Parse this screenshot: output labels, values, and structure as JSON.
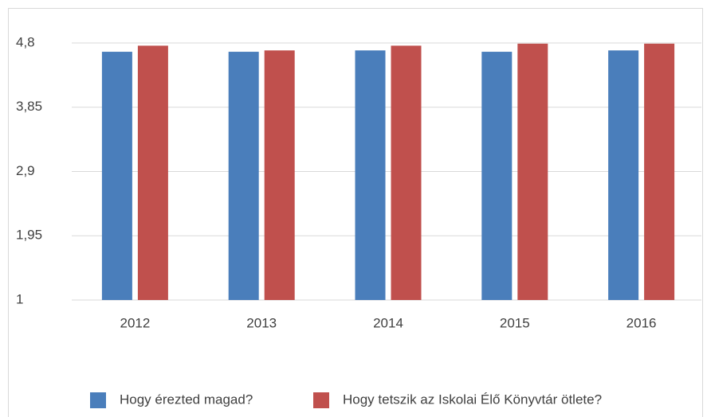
{
  "chart_data": {
    "type": "bar",
    "categories": [
      "2012",
      "2013",
      "2014",
      "2015",
      "2016"
    ],
    "series": [
      {
        "name": "Hogy érezted magad?",
        "color": "#4a7ebb",
        "values": [
          4.67,
          4.67,
          4.69,
          4.67,
          4.69
        ]
      },
      {
        "name": "Hogy tetszik az Iskolai Élő Könyvtár ötlete?",
        "color": "#c0504d",
        "values": [
          4.76,
          4.69,
          4.76,
          4.79,
          4.79
        ]
      }
    ],
    "ylim": [
      1,
      4.8
    ],
    "yticks": [
      1,
      {
        "value": 1.95,
        "label": "1,95"
      },
      {
        "value": 2.9,
        "label": "2,9"
      },
      {
        "value": 3.85,
        "label": "3,85"
      },
      {
        "value": 4.8,
        "label": "4,8"
      }
    ],
    "grid": true,
    "legend": "bottom"
  }
}
